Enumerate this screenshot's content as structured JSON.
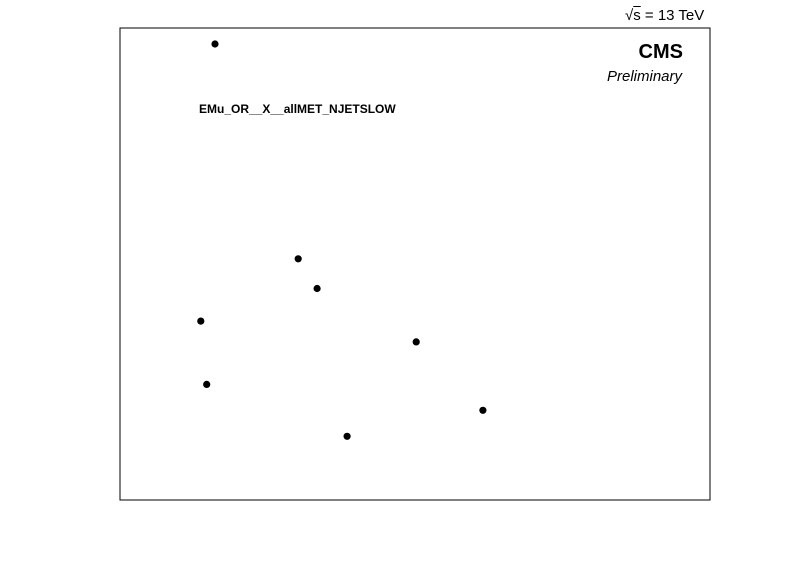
{
  "energy_label": {
    "sqrt_symbol": "√",
    "variable": "s",
    "value_text": " = 13 TeV"
  },
  "experiment_label": "CMS",
  "status_label": "Preliminary",
  "region_label": "EMu_OR__X__allMET_NJETSLOW",
  "chart_data": {
    "type": "scatter",
    "title": "",
    "xlabel": "",
    "ylabel": "",
    "grid": false,
    "xlim": [
      0,
      1
    ],
    "ylim": [
      0,
      1
    ],
    "points": [
      {
        "x": 0.161,
        "y": 0.966
      },
      {
        "x": 0.302,
        "y": 0.511
      },
      {
        "x": 0.334,
        "y": 0.448
      },
      {
        "x": 0.137,
        "y": 0.379
      },
      {
        "x": 0.502,
        "y": 0.335
      },
      {
        "x": 0.147,
        "y": 0.245
      },
      {
        "x": 0.615,
        "y": 0.19
      },
      {
        "x": 0.385,
        "y": 0.135
      }
    ],
    "marker_color": "#000000"
  }
}
